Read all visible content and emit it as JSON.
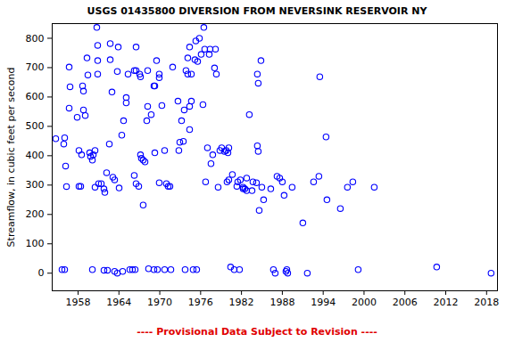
{
  "chart_data": {
    "type": "scatter",
    "title": "USGS 01435800 DIVERSION FROM NEVERSINK RESERVOIR NY",
    "caption": "---- Provisional Data Subject to Revision ----",
    "y_label": "Streamflow, in cubic feet per second",
    "color": "#0000ff",
    "marker": "circle",
    "grid": false,
    "xlim": [
      1954.2,
      2019.6
    ],
    "ylim": [
      -60,
      850
    ],
    "xticks": [
      1958,
      1964,
      1970,
      1976,
      1982,
      1988,
      1994,
      2000,
      2006,
      2012,
      2018
    ],
    "yticks": [
      0,
      100,
      200,
      300,
      400,
      500,
      600,
      700,
      800
    ],
    "x": [
      1954.72,
      1955.9,
      1956.03,
      1956.03,
      1955.64,
      1956.3,
      1956.17,
      1956.69,
      1956.82,
      1956.69,
      1957.87,
      1958.13,
      1958.39,
      1958.13,
      1958.52,
      1958.66,
      1958.79,
      1958.79,
      1959.05,
      1959.31,
      1959.44,
      1959.7,
      1959.83,
      1960.1,
      1960.23,
      1960.49,
      1960.49,
      1960.1,
      1960.75,
      1960.88,
      1960.88,
      1960.88,
      1961.01,
      1961.41,
      1961.8,
      1961.93,
      1962.19,
      1961.8,
      1962.32,
      1962.72,
      1962.72,
      1962.98,
      1962.59,
      1963.11,
      1963.37,
      1963.37,
      1963.76,
      1963.9,
      1963.76,
      1964.03,
      1964.42,
      1964.55,
      1964.68,
      1965.07,
      1965.07,
      1965.34,
      1965.6,
      1965.99,
      1966.25,
      1966.52,
      1966.52,
      1966.38,
      1966.25,
      1966.52,
      1966.91,
      1967.04,
      1967.17,
      1967.56,
      1967.17,
      1967.3,
      1967.56,
      1967.83,
      1968.09,
      1968.22,
      1968.35,
      1968.22,
      1968.74,
      1969.14,
      1969.27,
      1969.14,
      1969.27,
      1969.53,
      1969.66,
      1969.92,
      1969.92,
      1969.92,
      1970.31,
      1970.71,
      1970.71,
      1970.97,
      1971.23,
      1971.49,
      1971.63,
      1971.89,
      1972.67,
      1972.8,
      1972.94,
      1973.2,
      1973.59,
      1973.85,
      1974.11,
      1973.46,
      1973.72,
      1974.11,
      1974.38,
      1974.38,
      1974.64,
      1974.38,
      1974.64,
      1974.9,
      1975.16,
      1975.29,
      1975.42,
      1975.56,
      1975.82,
      1976.08,
      1976.34,
      1976.47,
      1976.6,
      1976.73,
      1977.0,
      1977.26,
      1977.39,
      1977.52,
      1977.78,
      1978.04,
      1978.31,
      1978.18,
      1978.57,
      1978.83,
      1979.09,
      1979.49,
      1979.75,
      1980.01,
      1979.88,
      1980.14,
      1980.14,
      1980.4,
      1980.66,
      1980.93,
      1981.32,
      1981.45,
      1981.71,
      1981.84,
      1982.24,
      1982.24,
      1982.5,
      1982.76,
      1982.76,
      1983.15,
      1983.55,
      1983.68,
      1984.2,
      1984.33,
      1984.46,
      1984.33,
      1984.46,
      1984.6,
      1984.86,
      1984.99,
      1985.25,
      1986.3,
      1986.69,
      1986.95,
      1987.22,
      1987.61,
      1988.0,
      1988.26,
      1988.53,
      1988.79,
      1988.66,
      1989.44,
      1991.01,
      1991.67,
      1992.59,
      1993.37,
      1993.5,
      1994.42,
      1994.55,
      1996.52,
      1997.56,
      1998.35,
      1999.14,
      2001.5,
      2010.67,
      2018.66
    ],
    "values": [
      458,
      440,
      461,
      12,
      12,
      295,
      365,
      702,
      635,
      562,
      531,
      296,
      296,
      418,
      403,
      638,
      620,
      556,
      537,
      733,
      675,
      410,
      397,
      385,
      403,
      418,
      293,
      12,
      837,
      776,
      724,
      678,
      305,
      305,
      287,
      275,
      342,
      10,
      10,
      782,
      727,
      617,
      440,
      327,
      318,
      6,
      0,
      770,
      687,
      290,
      470,
      6,
      519,
      598,
      580,
      678,
      12,
      12,
      690,
      690,
      770,
      12,
      333,
      305,
      296,
      678,
      669,
      232,
      403,
      391,
      385,
      379,
      519,
      568,
      15,
      690,
      540,
      638,
      638,
      12,
      410,
      724,
      12,
      678,
      666,
      308,
      571,
      12,
      418,
      305,
      296,
      296,
      12,
      702,
      586,
      418,
      446,
      519,
      556,
      690,
      678,
      449,
      12,
      733,
      770,
      568,
      586,
      489,
      678,
      12,
      727,
      791,
      12,
      721,
      800,
      745,
      574,
      837,
      763,
      311,
      427,
      745,
      763,
      373,
      403,
      699,
      678,
      763,
      293,
      418,
      427,
      415,
      418,
      410,
      311,
      427,
      318,
      21,
      336,
      12,
      296,
      311,
      12,
      318,
      293,
      287,
      287,
      324,
      281,
      540,
      281,
      311,
      308,
      678,
      647,
      434,
      415,
      214,
      724,
      293,
      250,
      287,
      12,
      0,
      330,
      324,
      311,
      265,
      6,
      0,
      12,
      293,
      171,
      0,
      311,
      330,
      669,
      464,
      250,
      220,
      293,
      311,
      12,
      293,
      21,
      0
    ]
  }
}
